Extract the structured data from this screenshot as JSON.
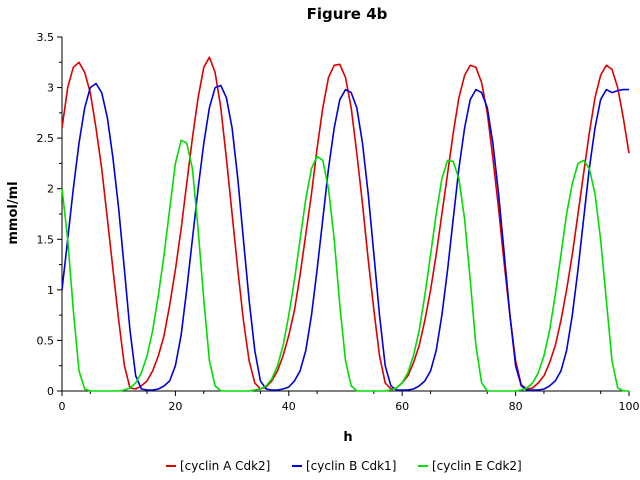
{
  "chart_data": {
    "type": "line",
    "title": "Figure 4b",
    "xlabel": "h",
    "ylabel": "mmol/ml",
    "xlim": [
      0,
      100
    ],
    "ylim": [
      0,
      3.5
    ],
    "x_ticks": [
      "0",
      "20",
      "40",
      "60",
      "80",
      "100"
    ],
    "y_ticks": [
      "0",
      "0.5",
      "1",
      "1.5",
      "2",
      "2.5",
      "3",
      "3.5"
    ],
    "grid": false,
    "legend_position": "bottom",
    "series": [
      {
        "name": "[cyclin A Cdk2]",
        "color": "#dd0000",
        "x": [
          0,
          1,
          2,
          3,
          4,
          5,
          6,
          7,
          8,
          9,
          10,
          11,
          12,
          13,
          14,
          15,
          16,
          17,
          18,
          19,
          20,
          21,
          22,
          23,
          24,
          25,
          26,
          27,
          28,
          29,
          30,
          31,
          32,
          33,
          34,
          35,
          36,
          37,
          38,
          39,
          40,
          41,
          42,
          43,
          44,
          45,
          46,
          47,
          48,
          49,
          50,
          51,
          52,
          53,
          54,
          55,
          56,
          57,
          58,
          59,
          60,
          61,
          62,
          63,
          64,
          65,
          66,
          67,
          68,
          69,
          70,
          71,
          72,
          73,
          74,
          75,
          76,
          77,
          78,
          79,
          80,
          81,
          82,
          83,
          84,
          85,
          86,
          87,
          88,
          89,
          90,
          91,
          92,
          93,
          94,
          95,
          96,
          97,
          98,
          99,
          100
        ],
        "y": [
          2.6,
          3.0,
          3.2,
          3.25,
          3.15,
          2.95,
          2.6,
          2.2,
          1.7,
          1.2,
          0.7,
          0.25,
          0.03,
          0.02,
          0.05,
          0.1,
          0.2,
          0.35,
          0.55,
          0.85,
          1.2,
          1.6,
          2.05,
          2.5,
          2.9,
          3.2,
          3.3,
          3.15,
          2.8,
          2.3,
          1.75,
          1.2,
          0.7,
          0.3,
          0.08,
          0.02,
          0.04,
          0.1,
          0.2,
          0.35,
          0.55,
          0.8,
          1.15,
          1.55,
          1.95,
          2.4,
          2.8,
          3.1,
          3.22,
          3.23,
          3.1,
          2.8,
          2.35,
          1.85,
          1.3,
          0.8,
          0.35,
          0.08,
          0.02,
          0.03,
          0.08,
          0.15,
          0.28,
          0.45,
          0.7,
          1.0,
          1.35,
          1.75,
          2.15,
          2.55,
          2.9,
          3.12,
          3.22,
          3.2,
          3.05,
          2.75,
          2.3,
          1.8,
          1.25,
          0.75,
          0.3,
          0.06,
          0.02,
          0.03,
          0.08,
          0.15,
          0.28,
          0.45,
          0.7,
          1.0,
          1.35,
          1.75,
          2.15,
          2.55,
          2.9,
          3.12,
          3.22,
          3.18,
          3.0,
          2.7,
          2.35
        ]
      },
      {
        "name": "[cyclin B Cdk1]",
        "color": "#0000dd",
        "x": [
          0,
          1,
          2,
          3,
          4,
          5,
          6,
          7,
          8,
          9,
          10,
          11,
          12,
          13,
          14,
          15,
          16,
          17,
          18,
          19,
          20,
          21,
          22,
          23,
          24,
          25,
          26,
          27,
          28,
          29,
          30,
          31,
          32,
          33,
          34,
          35,
          36,
          37,
          38,
          39,
          40,
          41,
          42,
          43,
          44,
          45,
          46,
          47,
          48,
          49,
          50,
          51,
          52,
          53,
          54,
          55,
          56,
          57,
          58,
          59,
          60,
          61,
          62,
          63,
          64,
          65,
          66,
          67,
          68,
          69,
          70,
          71,
          72,
          73,
          74,
          75,
          76,
          77,
          78,
          79,
          80,
          81,
          82,
          83,
          84,
          85,
          86,
          87,
          88,
          89,
          90,
          91,
          92,
          93,
          94,
          95,
          96,
          97,
          98,
          99,
          100
        ],
        "y": [
          1.0,
          1.5,
          2.0,
          2.45,
          2.8,
          3.0,
          3.04,
          2.95,
          2.7,
          2.3,
          1.8,
          1.2,
          0.6,
          0.15,
          0.02,
          0.01,
          0.01,
          0.02,
          0.05,
          0.1,
          0.25,
          0.55,
          1.0,
          1.5,
          2.0,
          2.45,
          2.8,
          3.0,
          3.02,
          2.9,
          2.6,
          2.1,
          1.5,
          0.9,
          0.4,
          0.1,
          0.02,
          0.01,
          0.01,
          0.02,
          0.04,
          0.1,
          0.2,
          0.4,
          0.75,
          1.2,
          1.7,
          2.2,
          2.6,
          2.88,
          2.98,
          2.95,
          2.8,
          2.45,
          1.95,
          1.35,
          0.75,
          0.25,
          0.05,
          0.01,
          0.01,
          0.01,
          0.02,
          0.05,
          0.1,
          0.2,
          0.4,
          0.75,
          1.2,
          1.7,
          2.2,
          2.6,
          2.88,
          2.98,
          2.95,
          2.8,
          2.45,
          1.95,
          1.35,
          0.75,
          0.25,
          0.05,
          0.01,
          0.01,
          0.01,
          0.02,
          0.05,
          0.1,
          0.2,
          0.4,
          0.75,
          1.2,
          1.7,
          2.2,
          2.6,
          2.88,
          2.98,
          2.95,
          2.97,
          2.98,
          2.98
        ]
      },
      {
        "name": "[cyclin E Cdk2]",
        "color": "#00dd00",
        "x": [
          0,
          1,
          2,
          3,
          4,
          5,
          6,
          7,
          8,
          9,
          10,
          11,
          12,
          13,
          14,
          15,
          16,
          17,
          18,
          19,
          20,
          21,
          22,
          23,
          24,
          25,
          26,
          27,
          28,
          29,
          30,
          31,
          32,
          33,
          34,
          35,
          36,
          37,
          38,
          39,
          40,
          41,
          42,
          43,
          44,
          45,
          46,
          47,
          48,
          49,
          50,
          51,
          52,
          53,
          54,
          55,
          56,
          57,
          58,
          59,
          60,
          61,
          62,
          63,
          64,
          65,
          66,
          67,
          68,
          69,
          70,
          71,
          72,
          73,
          74,
          75,
          76,
          77,
          78,
          79,
          80,
          81,
          82,
          83,
          84,
          85,
          86,
          87,
          88,
          89,
          90,
          91,
          92,
          93,
          94,
          95,
          96,
          97,
          98,
          99,
          100
        ],
        "y": [
          2.0,
          1.5,
          0.8,
          0.2,
          0.02,
          0.0,
          0.0,
          0.0,
          0.0,
          0.0,
          0.0,
          0.01,
          0.03,
          0.08,
          0.18,
          0.35,
          0.6,
          0.95,
          1.35,
          1.8,
          2.25,
          2.48,
          2.45,
          2.2,
          1.6,
          0.9,
          0.3,
          0.05,
          0.0,
          0.0,
          0.0,
          0.0,
          0.0,
          0.0,
          0.01,
          0.02,
          0.05,
          0.12,
          0.25,
          0.45,
          0.75,
          1.1,
          1.5,
          1.9,
          2.2,
          2.32,
          2.28,
          2.0,
          1.5,
          0.85,
          0.3,
          0.05,
          0.0,
          0.0,
          0.0,
          0.0,
          0.0,
          0.0,
          0.01,
          0.03,
          0.08,
          0.18,
          0.35,
          0.6,
          0.95,
          1.35,
          1.75,
          2.1,
          2.28,
          2.27,
          2.1,
          1.7,
          1.1,
          0.45,
          0.08,
          0.0,
          0.0,
          0.0,
          0.0,
          0.0,
          0.0,
          0.01,
          0.03,
          0.08,
          0.18,
          0.35,
          0.6,
          0.95,
          1.35,
          1.75,
          2.05,
          2.25,
          2.28,
          2.2,
          1.95,
          1.5,
          0.9,
          0.3,
          0.03,
          0.0,
          0.0
        ]
      }
    ]
  }
}
